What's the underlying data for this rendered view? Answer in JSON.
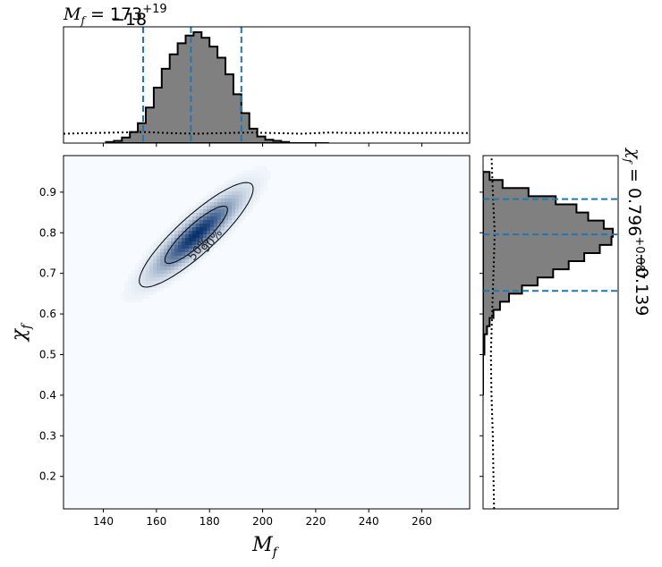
{
  "chart_data": {
    "type": "corner",
    "top_title": {
      "var": "M",
      "sub": "f",
      "eq": " = ",
      "value": "173",
      "sup": "+19",
      "low": "−18"
    },
    "right_title": {
      "var": "χ",
      "sub": "f",
      "eq": " = ",
      "value": "0.796",
      "sup": "+0.087",
      "low": "−0.139"
    },
    "xlabel": {
      "var": "M",
      "sub": "f"
    },
    "ylabel": {
      "var": "χ",
      "sub": "f"
    },
    "xlim": [
      125,
      278
    ],
    "ylim": [
      0.12,
      0.99
    ],
    "xticks": [
      140,
      160,
      180,
      200,
      220,
      240,
      260
    ],
    "yticks": [
      0.2,
      0.3,
      0.4,
      0.5,
      0.6,
      0.7,
      0.8,
      0.9
    ],
    "mf_quantiles": [
      155,
      173,
      192
    ],
    "chi_quantiles": [
      0.657,
      0.796,
      0.883
    ],
    "mf_hist": {
      "bin_edges": [
        141,
        144,
        147,
        150,
        153,
        156,
        159,
        162,
        165,
        168,
        171,
        174,
        177,
        180,
        183,
        186,
        189,
        192,
        195,
        198,
        201,
        204,
        207,
        210,
        213,
        216,
        219,
        222,
        225
      ],
      "counts": [
        0.01,
        0.02,
        0.05,
        0.1,
        0.18,
        0.32,
        0.5,
        0.67,
        0.8,
        0.9,
        0.97,
        1.0,
        0.95,
        0.87,
        0.77,
        0.62,
        0.44,
        0.27,
        0.13,
        0.06,
        0.03,
        0.02,
        0.01,
        0.0,
        0.0,
        0.0,
        0.0,
        0.0
      ]
    },
    "chi_hist": {
      "bin_edges": [
        0.4,
        0.5,
        0.55,
        0.57,
        0.59,
        0.61,
        0.63,
        0.65,
        0.67,
        0.69,
        0.71,
        0.73,
        0.75,
        0.77,
        0.79,
        0.81,
        0.83,
        0.85,
        0.87,
        0.89,
        0.91,
        0.93,
        0.95
      ],
      "counts": [
        0.0,
        0.01,
        0.03,
        0.05,
        0.08,
        0.13,
        0.2,
        0.3,
        0.42,
        0.54,
        0.66,
        0.78,
        0.9,
        0.99,
        1.0,
        0.93,
        0.81,
        0.72,
        0.56,
        0.35,
        0.15,
        0.05
      ]
    },
    "mf_prior": {
      "x": [
        125,
        135,
        145,
        155,
        165,
        175,
        185,
        195,
        205,
        215,
        225,
        235,
        245,
        255,
        265,
        278
      ],
      "y": [
        0.085,
        0.09,
        0.095,
        0.1,
        0.09,
        0.085,
        0.09,
        0.095,
        0.09,
        0.085,
        0.095,
        0.09,
        0.095,
        0.09,
        0.092,
        0.09
      ]
    },
    "chi_prior": {
      "y": [
        0.12,
        0.2,
        0.3,
        0.4,
        0.5,
        0.6,
        0.7,
        0.8,
        0.9,
        0.99
      ],
      "x": [
        0.085,
        0.08,
        0.075,
        0.065,
        0.06,
        0.07,
        0.08,
        0.09,
        0.075,
        0.065
      ]
    },
    "density": {
      "center": [
        175,
        0.795
      ],
      "corr": 0.88,
      "sd_x": 10,
      "sd_y": 0.06
    },
    "contour_labels": [
      "50%",
      "90%"
    ]
  }
}
